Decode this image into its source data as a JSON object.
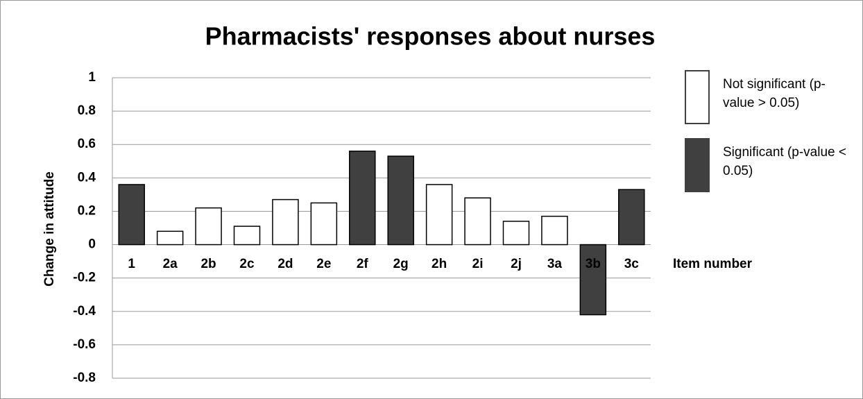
{
  "chart_data": {
    "type": "bar",
    "title": "Pharmacists' responses about nurses",
    "x_label": "Item number",
    "y_label": "Change in attitude",
    "categories": [
      "1",
      "2a",
      "2b",
      "2c",
      "2d",
      "2e",
      "2f",
      "2g",
      "2h",
      "2i",
      "2j",
      "3a",
      "3b",
      "3c"
    ],
    "series": [
      {
        "name": "Not significant (p-value > 0.05)",
        "color": "#ffffff",
        "values": [
          null,
          0.08,
          0.22,
          0.11,
          0.27,
          0.25,
          null,
          null,
          0.36,
          0.28,
          0.14,
          0.17,
          null,
          null
        ]
      },
      {
        "name": "Significant (p-value < 0.05)",
        "color": "#404040",
        "values": [
          0.36,
          null,
          null,
          null,
          null,
          null,
          0.56,
          0.53,
          null,
          null,
          null,
          null,
          -0.42,
          0.33
        ]
      }
    ],
    "ylim": [
      -0.8,
      1
    ],
    "yticks": [
      -0.8,
      -0.6,
      -0.4,
      -0.2,
      0,
      0.2,
      0.4,
      0.6,
      0.8,
      1
    ],
    "grid": true,
    "legend": "right"
  }
}
